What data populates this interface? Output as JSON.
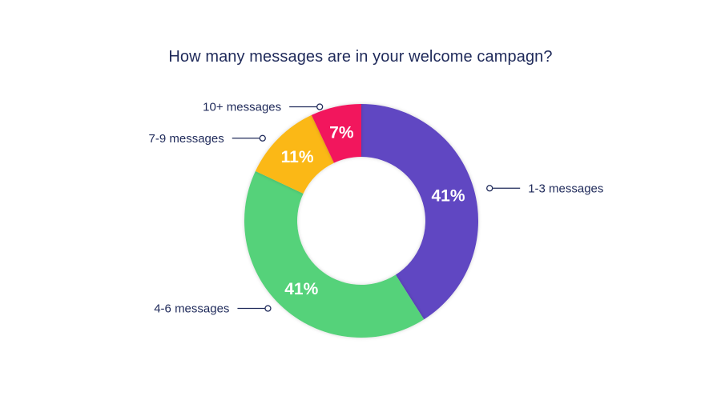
{
  "chart_data": {
    "type": "pie",
    "title": "How many messages are in your welcome campagn?",
    "categories": [
      "1-3 messages",
      "4-6 messages",
      "7-9 messages",
      "10+ messages"
    ],
    "values": [
      41,
      41,
      11,
      7
    ],
    "value_labels": [
      "41%",
      "41%",
      "11%",
      "7%"
    ],
    "colors": [
      "#6147c2",
      "#55d27a",
      "#fbb812",
      "#f2135d"
    ],
    "donut": true,
    "legend": "callouts"
  }
}
